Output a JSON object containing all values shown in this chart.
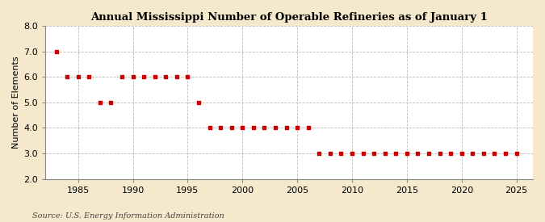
{
  "title": "Annual Mississippi Number of Operable Refineries as of January 1",
  "ylabel": "Number of Elements",
  "source": "Source: U.S. Energy Information Administration",
  "background_color": "#f5e8cc",
  "plot_background_color": "#ffffff",
  "marker_color": "#cc0000",
  "grid_color": "#aaaaaa",
  "xlim": [
    1982,
    2026.5
  ],
  "ylim": [
    2.0,
    8.0
  ],
  "yticks": [
    2.0,
    3.0,
    4.0,
    5.0,
    6.0,
    7.0,
    8.0
  ],
  "xticks": [
    1985,
    1990,
    1995,
    2000,
    2005,
    2010,
    2015,
    2020,
    2025
  ],
  "years": [
    1983,
    1984,
    1985,
    1986,
    1987,
    1988,
    1989,
    1990,
    1991,
    1992,
    1993,
    1994,
    1995,
    1996,
    1997,
    1998,
    1999,
    2000,
    2001,
    2002,
    2003,
    2004,
    2005,
    2006,
    2007,
    2008,
    2009,
    2010,
    2011,
    2012,
    2013,
    2014,
    2015,
    2016,
    2017,
    2018,
    2019,
    2020,
    2021,
    2022,
    2023,
    2024,
    2025
  ],
  "values": [
    7,
    6,
    6,
    6,
    5,
    5,
    6,
    6,
    6,
    6,
    6,
    6,
    6,
    5,
    4,
    4,
    4,
    4,
    4,
    4,
    4,
    4,
    4,
    4,
    3,
    3,
    3,
    3,
    3,
    3,
    3,
    3,
    3,
    3,
    3,
    3,
    3,
    3,
    3,
    3,
    3,
    3,
    3
  ],
  "title_fontsize": 9.5,
  "tick_fontsize": 8,
  "ylabel_fontsize": 8,
  "source_fontsize": 7
}
